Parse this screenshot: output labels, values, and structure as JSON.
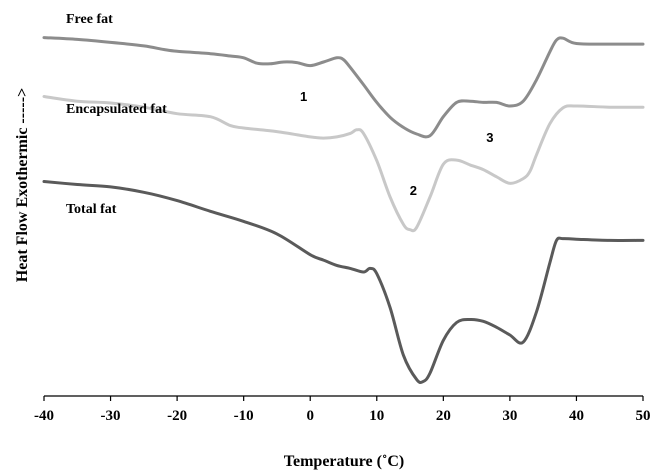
{
  "chart_data": {
    "type": "line",
    "xlabel": "Temperature (˚C)",
    "ylabel": "Heat Flow Exothermic ----->",
    "xlim": [
      -40,
      50
    ],
    "xticks": [
      "-40",
      "-30",
      "-20",
      "-10",
      "0",
      "10",
      "20",
      "30",
      "40",
      "50"
    ],
    "y_ticks_shown": false,
    "grid": false,
    "series": [
      {
        "name": "Free fat",
        "color": "#8c8c8c",
        "x": [
          -40,
          -35,
          -30,
          -25,
          -22,
          -20,
          -15,
          -12,
          -10,
          -8,
          -6,
          -4,
          -2,
          0,
          2,
          4,
          5,
          6,
          8,
          10,
          12,
          14,
          16,
          18,
          20,
          22,
          24,
          26,
          28,
          30,
          32,
          34,
          36,
          37,
          38,
          40,
          45,
          50
        ],
        "y": [
          9.9,
          9.6,
          9.1,
          8.5,
          7.9,
          7.6,
          7.2,
          6.8,
          6.5,
          5.6,
          5.5,
          5.8,
          5.7,
          5.2,
          5.8,
          6.5,
          6.2,
          4.9,
          2.0,
          -1.0,
          -3.5,
          -5.2,
          -6.3,
          -6.6,
          -3.4,
          -1.0,
          -0.8,
          -1.0,
          -1.0,
          -1.6,
          -0.8,
          2.8,
          7.5,
          9.5,
          9.8,
          8.9,
          8.8,
          8.8
        ]
      },
      {
        "name": "Encapsulated fat",
        "color": "#c8c8c8",
        "x": [
          -40,
          -35,
          -30,
          -25,
          -20,
          -15,
          -12,
          -10,
          -5,
          0,
          2,
          4,
          6,
          7,
          8,
          10,
          12,
          14,
          15,
          16,
          18,
          20,
          22,
          24,
          26,
          28,
          30,
          32,
          33,
          34,
          36,
          38,
          40,
          45,
          50
        ],
        "y": [
          0.0,
          -0.8,
          -1.1,
          -1.8,
          -2.9,
          -3.4,
          -4.9,
          -5.3,
          -5.9,
          -6.8,
          -7.0,
          -6.8,
          -6.2,
          -5.6,
          -6.2,
          -10.8,
          -16.9,
          -21.5,
          -22.4,
          -22.0,
          -16.9,
          -11.4,
          -10.7,
          -11.5,
          -12.3,
          -13.5,
          -14.6,
          -13.8,
          -12.6,
          -9.8,
          -4.6,
          -1.9,
          -1.6,
          -1.8,
          -1.8
        ]
      },
      {
        "name": "Total fat",
        "color": "#5a5a5a",
        "x": [
          -40,
          -35,
          -30,
          -25,
          -20,
          -15,
          -10,
          -5,
          0,
          2,
          4,
          6,
          8,
          9,
          10,
          12,
          14,
          16,
          17,
          18,
          20,
          22,
          24,
          26,
          28,
          30,
          32,
          34,
          36,
          37,
          38,
          40,
          45,
          50
        ],
        "y": [
          -14.3,
          -14.8,
          -15.2,
          -16.1,
          -17.5,
          -19.3,
          -21.0,
          -23.1,
          -26.6,
          -27.5,
          -28.4,
          -28.9,
          -29.5,
          -28.9,
          -29.8,
          -35.5,
          -43.5,
          -47.6,
          -47.9,
          -46.5,
          -41.0,
          -38.0,
          -37.5,
          -37.8,
          -38.8,
          -40.1,
          -41.3,
          -36.2,
          -28.0,
          -24.2,
          -23.9,
          -24.0,
          -24.2,
          -24.2
        ]
      }
    ],
    "annotations": [
      {
        "text": "1",
        "x": -1
      },
      {
        "text": "2",
        "x": 15.5
      },
      {
        "text": "3",
        "x": 27
      }
    ]
  }
}
